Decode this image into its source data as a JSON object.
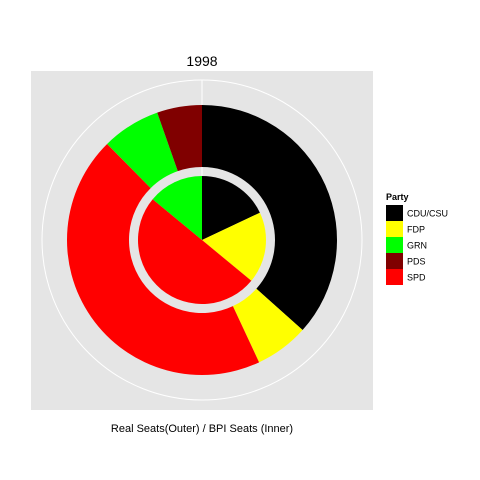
{
  "chart_data": {
    "type": "pie",
    "subtype": "nested-donut",
    "title": "1998",
    "xlabel": "Real Seats(Outer) / BPI Seats (Inner)",
    "ylabel": "",
    "legend": {
      "title": "Party",
      "placement": "right",
      "entries": [
        {
          "name": "CDU/CSU",
          "color": "#000000"
        },
        {
          "name": "FDP",
          "color": "#ffff00"
        },
        {
          "name": "GRN",
          "color": "#00ff00"
        },
        {
          "name": "PDS",
          "color": "#800000"
        },
        {
          "name": "SPD",
          "color": "#ff0000"
        }
      ]
    },
    "categories": [
      "CDU/CSU",
      "FDP",
      "GRN",
      "PDS",
      "SPD"
    ],
    "series": [
      {
        "ring": "outer",
        "values": [
          245,
          43,
          47,
          36,
          298
        ]
      },
      {
        "ring": "inner",
        "values": [
          18,
          18,
          14,
          0,
          50
        ]
      }
    ],
    "order_clockwise": [
      "CDU/CSU",
      "FDP",
      "SPD",
      "GRN",
      "PDS"
    ],
    "panel_color": "#e5e5e5",
    "grid": true
  }
}
